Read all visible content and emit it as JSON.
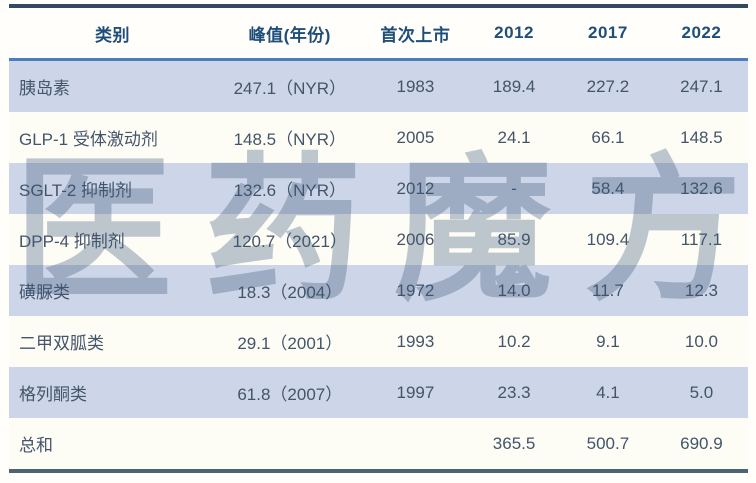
{
  "watermark": {
    "text": "医药魔方"
  },
  "colors": {
    "top_border": "#32495f",
    "bottom_border": "#4d6375",
    "header_rule": "#4a7ebc",
    "header_text": "#1f4e79",
    "body_text": "#44546a",
    "row_alt_bg": "#ccd6e8",
    "row_base_bg": "#fdfdf6",
    "watermark_color": "#3e5879"
  },
  "table": {
    "columns": [
      "类别",
      "峰值(年份)",
      "首次上市",
      "2012",
      "2017",
      "2022"
    ],
    "rows": [
      {
        "cells": [
          "胰岛素",
          "247.1（NYR）",
          "1983",
          "189.4",
          "227.2",
          "247.1"
        ]
      },
      {
        "cells": [
          "GLP-1 受体激动剂",
          "148.5（NYR）",
          "2005",
          "24.1",
          "66.1",
          "148.5"
        ]
      },
      {
        "cells": [
          "SGLT-2 抑制剂",
          "132.6（NYR）",
          "2012",
          "-",
          "58.4",
          "132.6"
        ]
      },
      {
        "cells": [
          "DPP-4 抑制剂",
          "120.7（2021）",
          "2006",
          "85.9",
          "109.4",
          "117.1"
        ]
      },
      {
        "cells": [
          "磺脲类",
          "18.3（2004）",
          "1972",
          "14.0",
          "11.7",
          "12.3"
        ]
      },
      {
        "cells": [
          "二甲双胍类",
          "29.1（2001）",
          "1993",
          "10.2",
          "9.1",
          "10.0"
        ]
      },
      {
        "cells": [
          "格列酮类",
          "61.8（2007）",
          "1997",
          "23.3",
          "4.1",
          "5.0"
        ]
      },
      {
        "cells": [
          "总和",
          "",
          "",
          "365.5",
          "500.7",
          "690.9"
        ]
      }
    ]
  },
  "chart_data": {
    "type": "table",
    "title": "",
    "columns": [
      "类别",
      "峰值(年份)",
      "首次上市",
      "2012",
      "2017",
      "2022"
    ],
    "categories": [
      "胰岛素",
      "GLP-1 受体激动剂",
      "SGLT-2 抑制剂",
      "DPP-4 抑制剂",
      "磺脲类",
      "二甲双胍类",
      "格列酮类",
      "总和"
    ],
    "peak_value_year": [
      "247.1（NYR）",
      "148.5（NYR）",
      "132.6（NYR）",
      "120.7（2021）",
      "18.3（2004）",
      "29.1（2001）",
      "61.8（2007）",
      null
    ],
    "first_launch_year": [
      1983,
      2005,
      2012,
      2006,
      1972,
      1993,
      1997,
      null
    ],
    "series": [
      {
        "name": "2012",
        "values": [
          189.4,
          24.1,
          null,
          85.9,
          14.0,
          10.2,
          23.3,
          365.5
        ]
      },
      {
        "name": "2017",
        "values": [
          227.2,
          66.1,
          58.4,
          109.4,
          11.7,
          9.1,
          4.1,
          500.7
        ]
      },
      {
        "name": "2022",
        "values": [
          247.1,
          148.5,
          132.6,
          117.1,
          12.3,
          10.0,
          5.0,
          690.9
        ]
      }
    ]
  }
}
